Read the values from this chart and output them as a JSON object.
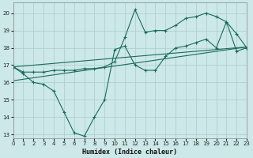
{
  "xlabel": "Humidex (Indice chaleur)",
  "background_color": "#cce8e8",
  "grid_color": "#aacccc",
  "line_color": "#1a6b5a",
  "xlim": [
    0,
    23
  ],
  "ylim": [
    12.8,
    20.6
  ],
  "yticks": [
    13,
    14,
    15,
    16,
    17,
    18,
    19,
    20
  ],
  "xticks": [
    0,
    1,
    2,
    3,
    4,
    5,
    6,
    7,
    8,
    9,
    10,
    11,
    12,
    13,
    14,
    15,
    16,
    17,
    18,
    19,
    20,
    21,
    22,
    23
  ],
  "s1_x": [
    0,
    1,
    2,
    3,
    4,
    5,
    6,
    7,
    8,
    9,
    10,
    11,
    12,
    13,
    14,
    15,
    16,
    17,
    18,
    19,
    20,
    21,
    22,
    23
  ],
  "s1_y": [
    16.9,
    16.5,
    16.0,
    15.9,
    15.5,
    14.3,
    13.1,
    12.9,
    14.0,
    15.0,
    17.9,
    18.1,
    17.0,
    16.7,
    16.7,
    17.5,
    18.0,
    18.1,
    18.3,
    18.5,
    18.0,
    19.5,
    17.8,
    18.0
  ],
  "s2_x": [
    0,
    1,
    2,
    3,
    4,
    5,
    6,
    7,
    8,
    9,
    10,
    11,
    12,
    13,
    14,
    15,
    16,
    17,
    18,
    19,
    20,
    21,
    22,
    23
  ],
  "s2_y": [
    16.9,
    16.6,
    16.6,
    16.6,
    16.7,
    16.7,
    16.7,
    16.8,
    16.8,
    16.9,
    17.2,
    18.6,
    20.2,
    18.9,
    19.0,
    19.0,
    19.3,
    19.7,
    19.8,
    20.0,
    19.8,
    19.5,
    18.8,
    18.0
  ],
  "trend1_x": [
    0,
    23
  ],
  "trend1_y": [
    16.1,
    18.05
  ],
  "trend2_x": [
    0,
    23
  ],
  "trend2_y": [
    16.9,
    18.05
  ]
}
